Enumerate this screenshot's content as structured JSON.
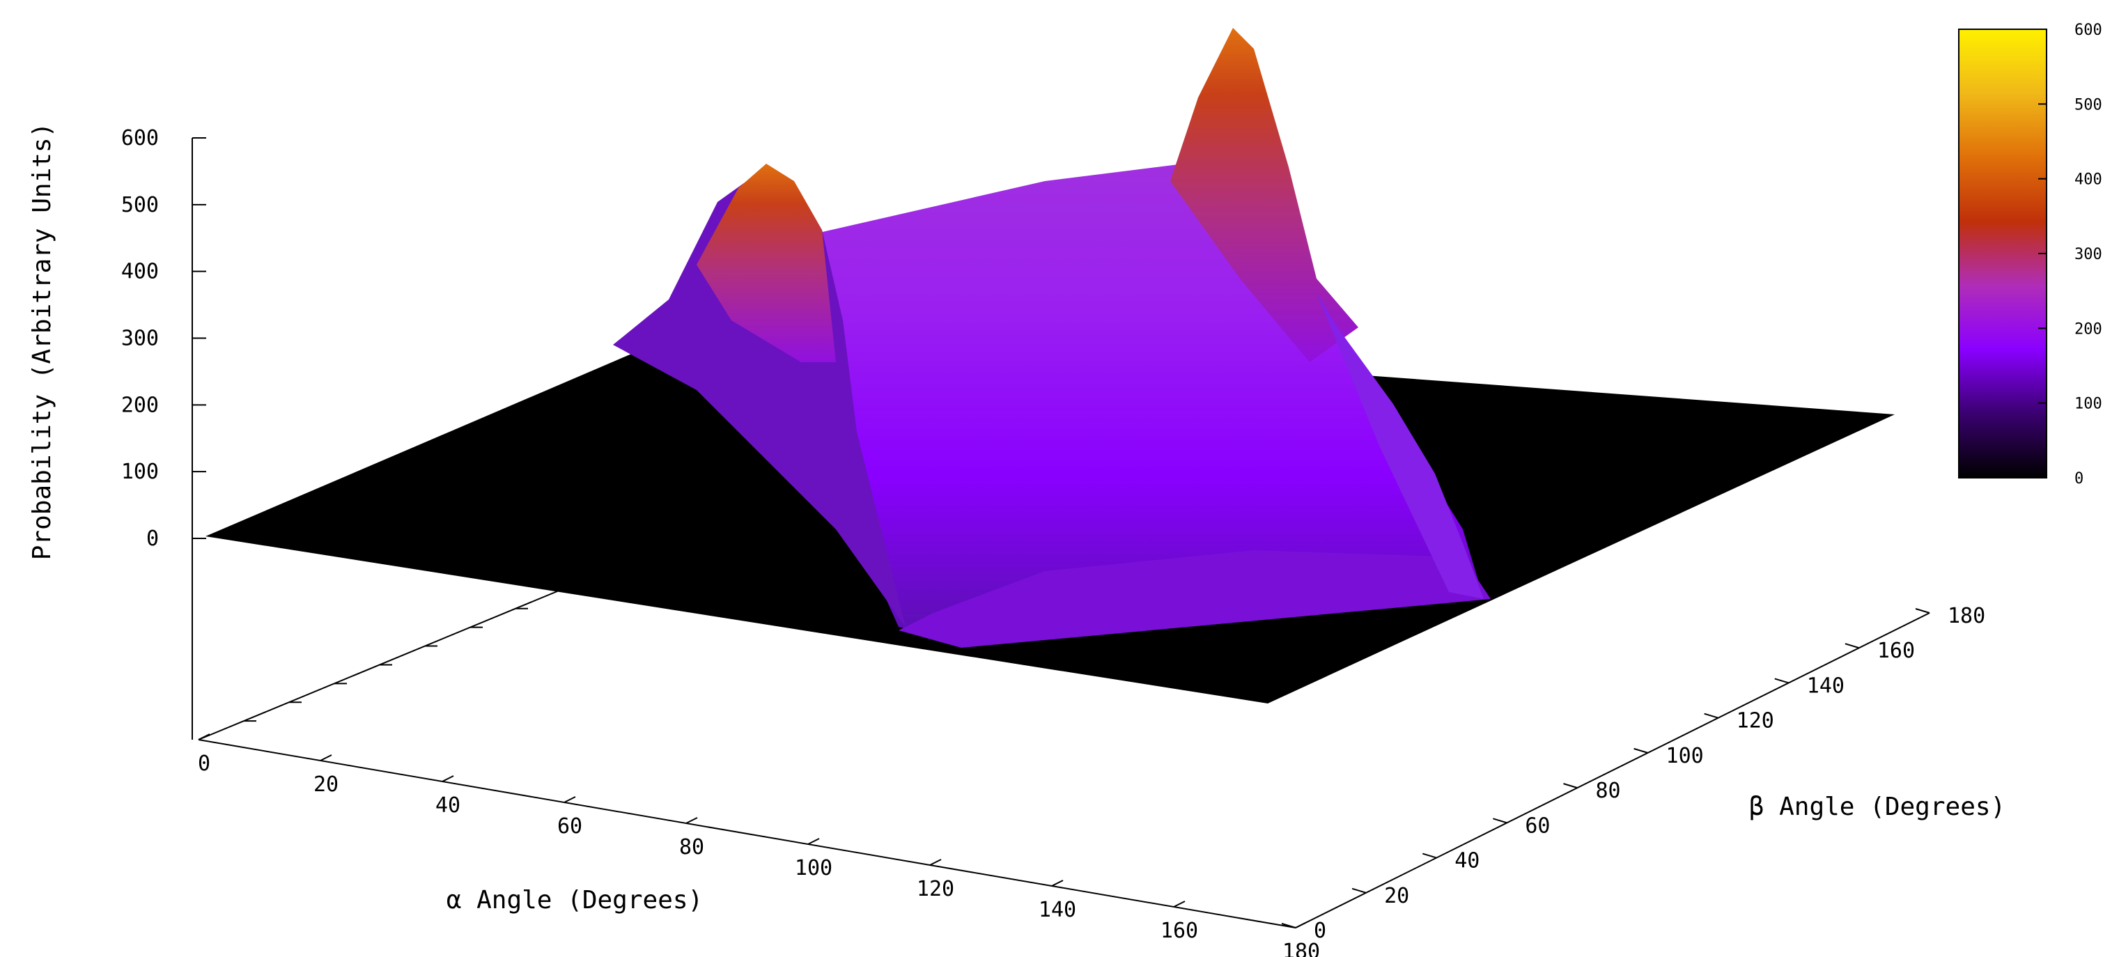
{
  "chart_data": {
    "type": "surface3d",
    "title": "",
    "x_axis": {
      "label": "α Angle (Degrees)",
      "range": [
        0,
        180
      ],
      "ticks": [
        0,
        20,
        40,
        60,
        80,
        100,
        120,
        140,
        160,
        180
      ]
    },
    "y_axis": {
      "label": "β Angle (Degrees)",
      "range": [
        0,
        180
      ],
      "ticks": [
        0,
        20,
        40,
        60,
        80,
        100,
        120,
        140,
        160,
        180
      ]
    },
    "z_axis": {
      "label": "Probability (Arbitrary Units)",
      "range": [
        0,
        600
      ],
      "ticks": [
        0,
        100,
        200,
        300,
        400,
        500,
        600
      ]
    },
    "colorbar": {
      "range": [
        0,
        600
      ],
      "ticks": [
        0,
        100,
        200,
        300,
        400,
        500,
        600
      ],
      "placement": "right",
      "colors": [
        "#000000",
        "#3a0070",
        "#8a00ff",
        "#b02db8",
        "#c0300a",
        "#e0700a",
        "#f0b818",
        "#fff000"
      ]
    },
    "grid": false,
    "surface": {
      "description_values": {
        "alpha_range_nonzero": [
          60,
          170
        ],
        "beta_range_nonzero": [
          0,
          120
        ],
        "plateau_level": 220,
        "peaks": [
          {
            "alpha": 62,
            "beta": 118,
            "z": 490
          },
          {
            "alpha": 162,
            "beta": 118,
            "z": 600
          }
        ]
      }
    }
  }
}
